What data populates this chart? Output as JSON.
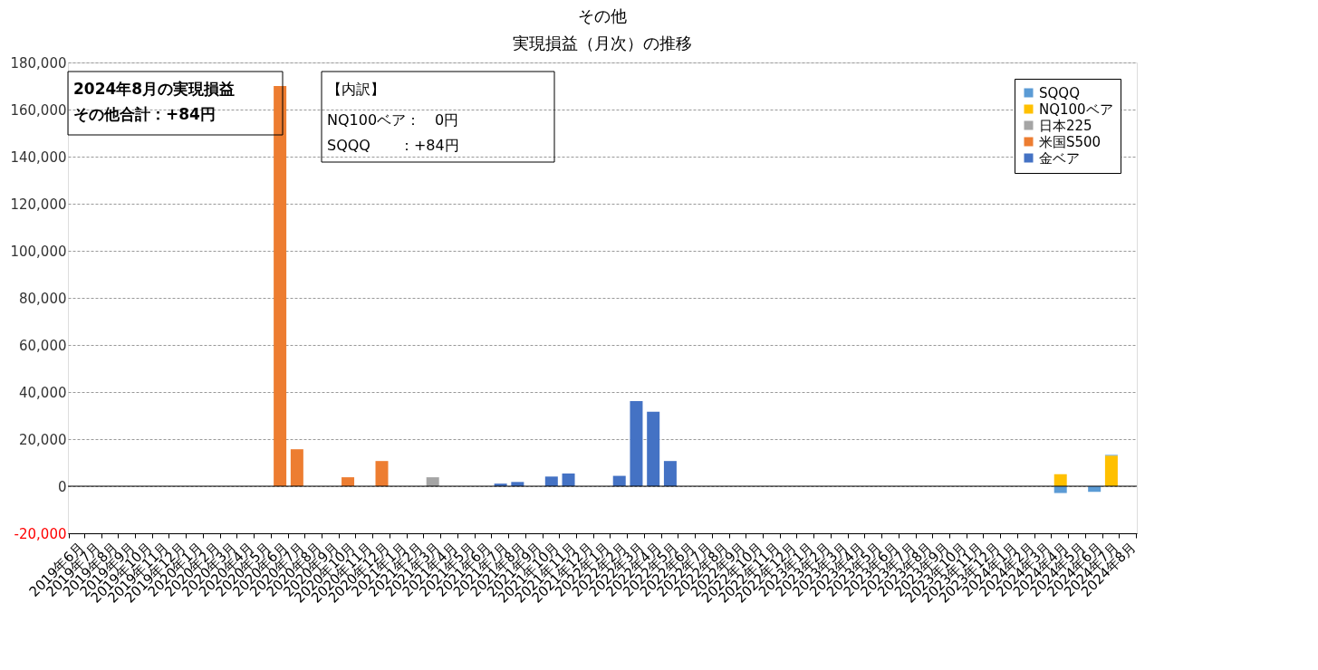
{
  "chart_data": {
    "type": "bar",
    "title": "その他",
    "subtitle": "実現損益（月次）の推移",
    "stacked": true,
    "legend": "top right",
    "grid": "y",
    "categories": [
      "2019年6月",
      "2019年7月",
      "2019年8月",
      "2019年9月",
      "2019年10月",
      "2019年11月",
      "2019年12月",
      "2020年1月",
      "2020年2月",
      "2020年3月",
      "2020年4月",
      "2020年5月",
      "2020年6月",
      "2020年7月",
      "2020年8月",
      "2020年9月",
      "2020年10月",
      "2020年11月",
      "2020年12月",
      "2021年1月",
      "2021年2月",
      "2021年3月",
      "2021年4月",
      "2021年5月",
      "2021年6月",
      "2021年7月",
      "2021年8月",
      "2021年9月",
      "2021年10月",
      "2021年11月",
      "2021年12月",
      "2022年1月",
      "2022年2月",
      "2022年3月",
      "2022年4月",
      "2022年5月",
      "2022年6月",
      "2022年7月",
      "2022年8月",
      "2022年9月",
      "2022年10月",
      "2022年11月",
      "2022年12月",
      "2023年1月",
      "2023年2月",
      "2023年3月",
      "2023年4月",
      "2023年5月",
      "2023年6月",
      "2023年7月",
      "2023年8月",
      "2023年9月",
      "2023年10月",
      "2023年11月",
      "2023年12月",
      "2024年1月",
      "2024年2月",
      "2024年3月",
      "2024年4月",
      "2024年5月",
      "2024年6月",
      "2024年7月",
      "2024年8月"
    ],
    "series": [
      {
        "name": "金ベア",
        "color": "#4472c4",
        "values": [
          null,
          null,
          null,
          null,
          null,
          null,
          null,
          null,
          null,
          null,
          null,
          null,
          null,
          null,
          null,
          null,
          null,
          null,
          null,
          null,
          null,
          null,
          null,
          null,
          null,
          1100,
          1800,
          null,
          4100,
          5400,
          null,
          null,
          4400,
          36200,
          31600,
          10700,
          null,
          null,
          null,
          null,
          null,
          null,
          null,
          null,
          null,
          null,
          null,
          null,
          null,
          null,
          null,
          null,
          null,
          null,
          null,
          null,
          null,
          null,
          null,
          null,
          null,
          null,
          null
        ]
      },
      {
        "name": "米国S500",
        "color": "#ed7d31",
        "values": [
          null,
          null,
          null,
          null,
          null,
          null,
          null,
          null,
          null,
          null,
          null,
          null,
          170000,
          15700,
          null,
          null,
          3800,
          null,
          10700,
          null,
          null,
          null,
          null,
          null,
          null,
          null,
          null,
          null,
          null,
          null,
          null,
          null,
          null,
          null,
          null,
          null,
          null,
          null,
          null,
          null,
          null,
          null,
          null,
          null,
          null,
          null,
          null,
          null,
          null,
          null,
          null,
          null,
          null,
          null,
          null,
          null,
          null,
          null,
          null,
          null,
          null,
          null,
          null
        ]
      },
      {
        "name": "日本225",
        "color": "#a5a5a5",
        "values": [
          null,
          null,
          null,
          null,
          null,
          null,
          null,
          null,
          null,
          null,
          null,
          null,
          null,
          null,
          null,
          null,
          null,
          null,
          null,
          null,
          null,
          3800,
          null,
          null,
          null,
          null,
          null,
          null,
          null,
          null,
          null,
          null,
          null,
          null,
          null,
          null,
          null,
          null,
          null,
          null,
          null,
          null,
          null,
          null,
          null,
          null,
          null,
          null,
          null,
          null,
          null,
          null,
          null,
          null,
          null,
          null,
          null,
          null,
          null,
          null,
          null,
          null,
          null
        ]
      },
      {
        "name": "NQ100ベア",
        "color": "#ffc000",
        "values": [
          null,
          null,
          null,
          null,
          null,
          null,
          null,
          null,
          null,
          null,
          null,
          null,
          null,
          null,
          null,
          null,
          null,
          null,
          null,
          null,
          null,
          null,
          null,
          null,
          null,
          null,
          null,
          null,
          null,
          null,
          null,
          null,
          null,
          null,
          null,
          null,
          null,
          null,
          null,
          null,
          null,
          null,
          null,
          null,
          null,
          null,
          null,
          null,
          null,
          null,
          null,
          null,
          null,
          null,
          null,
          null,
          null,
          null,
          5100,
          null,
          null,
          13000,
          null
        ]
      },
      {
        "name": "SQQQ",
        "color": "#5b9bd5",
        "values": [
          null,
          null,
          null,
          null,
          null,
          null,
          null,
          null,
          null,
          null,
          null,
          null,
          null,
          null,
          null,
          null,
          null,
          null,
          null,
          null,
          null,
          null,
          null,
          null,
          null,
          null,
          null,
          null,
          null,
          null,
          null,
          null,
          null,
          null,
          null,
          null,
          null,
          null,
          null,
          null,
          null,
          null,
          null,
          null,
          null,
          null,
          null,
          null,
          null,
          null,
          null,
          null,
          null,
          null,
          null,
          null,
          null,
          null,
          -2900,
          null,
          -2400,
          300,
          null
        ]
      }
    ],
    "ylim": [
      -20000,
      180000
    ],
    "yticks": [
      {
        "value": -20000,
        "label": "-20,000"
      },
      0,
      {
        "value": 20000,
        "label": "20,000"
      },
      {
        "value": 40000,
        "label": "40,000"
      },
      {
        "value": 60000,
        "label": "60,000"
      },
      {
        "value": 80000,
        "label": "80,000"
      },
      {
        "value": 100000,
        "label": "100,000"
      },
      {
        "value": 120000,
        "label": "120,000"
      },
      {
        "value": 140000,
        "label": "140,000"
      },
      {
        "value": 160000,
        "label": "160,000"
      },
      {
        "value": 180000,
        "label": "180,000"
      }
    ],
    "annotations": [
      "2024年8月の実現損益",
      "その他合計：+84円",
      "【内訳】",
      "NQ100ベア：　0円",
      "SQQQ　　：+84円"
    ]
  }
}
